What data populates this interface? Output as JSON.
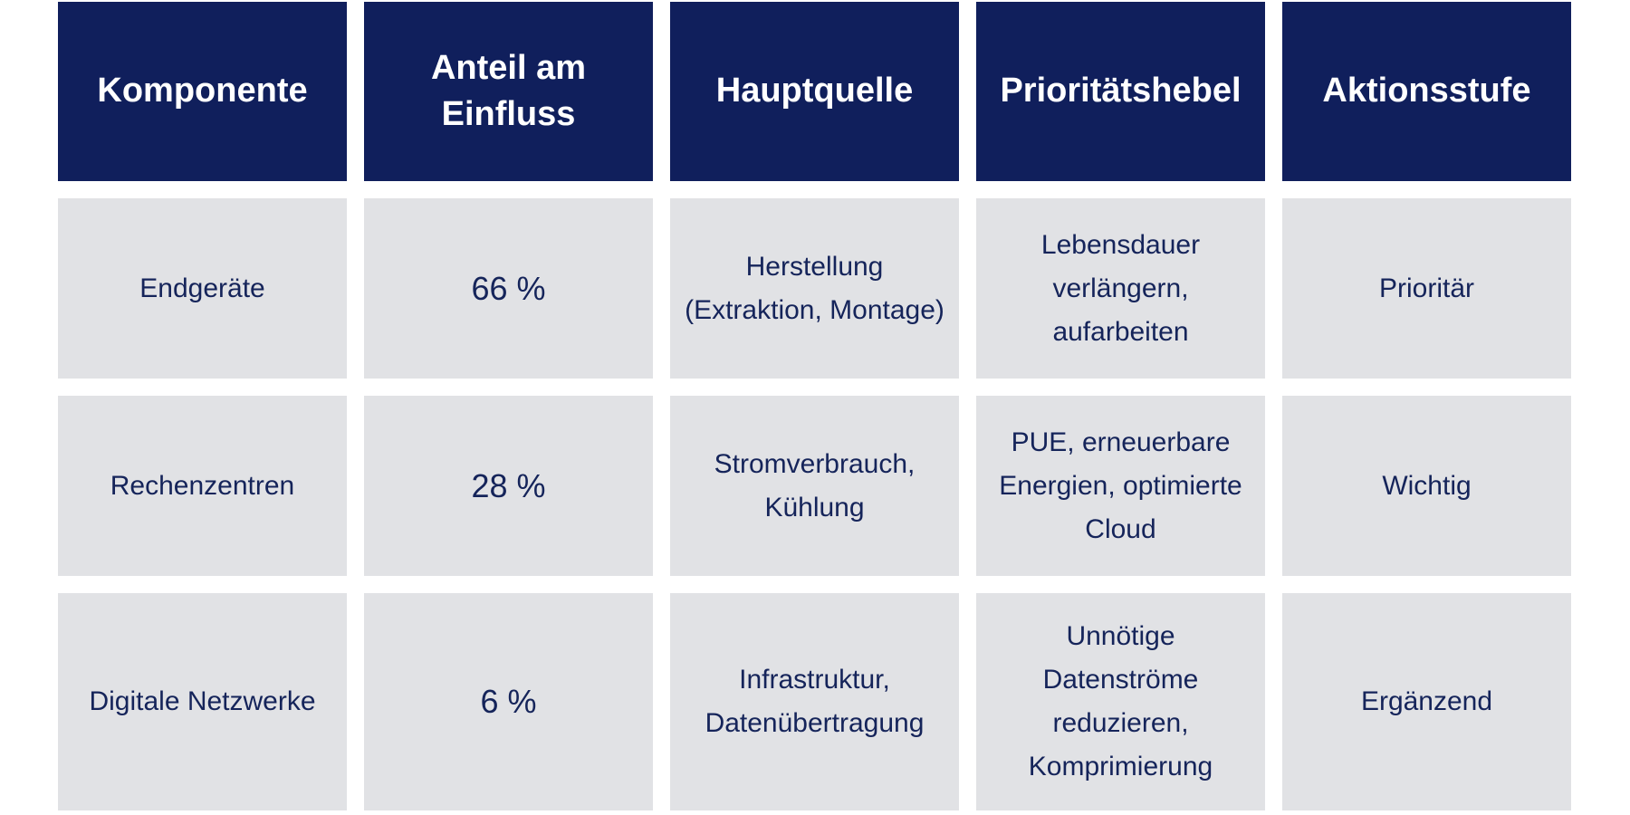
{
  "header": {
    "columns": [
      "Komponente",
      "Anteil am Einfluss",
      "Hauptquelle",
      "Prioritätshebel",
      "Aktionsstufe"
    ]
  },
  "table": {
    "rows": [
      [
        "Endgeräte",
        "66 %",
        "Herstellung (Extraktion, Montage)",
        "Lebensdauer verlängern, aufarbeiten",
        "Prioritär"
      ],
      [
        "Rechenzentren",
        "28 %",
        "Stromverbrauch, Kühlung",
        "PUE, erneuerbare Energien, optimierte Cloud",
        "Wichtig"
      ],
      [
        "Digitale Netzwerke",
        "6 %",
        "Infrastruktur, Datenübertragung",
        "Unnötige Datenströme reduzieren, Komprimierung",
        "Ergänzend"
      ]
    ]
  }
}
